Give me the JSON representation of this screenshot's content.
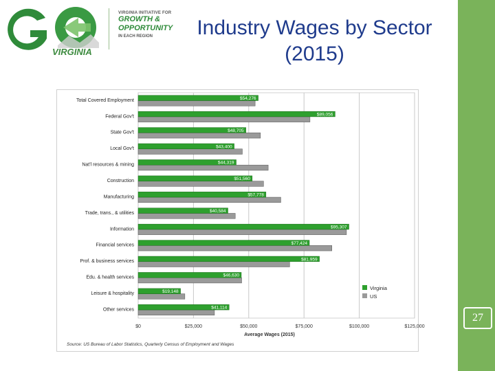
{
  "slide": {
    "title_line1": "Industry Wages by Sector",
    "title_line2": "(2015)",
    "page_number": "27"
  },
  "logo": {
    "go_text": "GO",
    "virginia_text": "VIRGINIA",
    "line1": "VIRGINIA INITIATIVE FOR",
    "line2": "GROWTH &",
    "line3": "OPPORTUNITY",
    "line4": "IN EACH REGION"
  },
  "colors": {
    "virginia": "#2ea02e",
    "us": "#9a9a9a",
    "band": "#7ab35a",
    "title": "#1f3b8c"
  },
  "chart_data": {
    "type": "bar",
    "orientation": "horizontal",
    "categories": [
      "Total Covered Employment",
      "Federal Gov't",
      "State Gov't",
      "Local Gov't",
      "Nat'l resources & mining",
      "Construction",
      "Manufacturing",
      "Trade, trans., & utilities",
      "Information",
      "Financial services",
      "Prof. & business services",
      "Edu. & health services",
      "Leisure & hospitality",
      "Other services"
    ],
    "series": [
      {
        "name": "Virginia",
        "values": [
          54276,
          89056,
          48705,
          43400,
          44319,
          51560,
          57778,
          40584,
          95307,
          77424,
          81959,
          46630,
          19148,
          41114
        ],
        "labels": [
          "$54,276",
          "$89,056",
          "$48,705",
          "$43,400",
          "$44,319",
          "$51,560",
          "$57,778",
          "$40,584",
          "$95,307",
          "$77,424",
          "$81,959",
          "$46,630",
          "$19,148",
          "$41,114"
        ]
      },
      {
        "name": "US",
        "values": [
          52900,
          77700,
          55300,
          47100,
          58800,
          56700,
          64500,
          43900,
          94200,
          87600,
          68500,
          46800,
          21100,
          34500
        ]
      }
    ],
    "xlim": [
      0,
      125000
    ],
    "xticks": [
      0,
      25000,
      50000,
      75000,
      100000,
      125000
    ],
    "xtick_labels": [
      "$0",
      "$25,000",
      "$50,000",
      "$75,000",
      "$100,000",
      "$125,000"
    ],
    "xlabel": "Average Wages (2015)",
    "source": "Source: US Bureau of Labor Statistics, Quarterly Census of Employment and Wages",
    "legend_position": "bottom-right",
    "grid": true
  }
}
